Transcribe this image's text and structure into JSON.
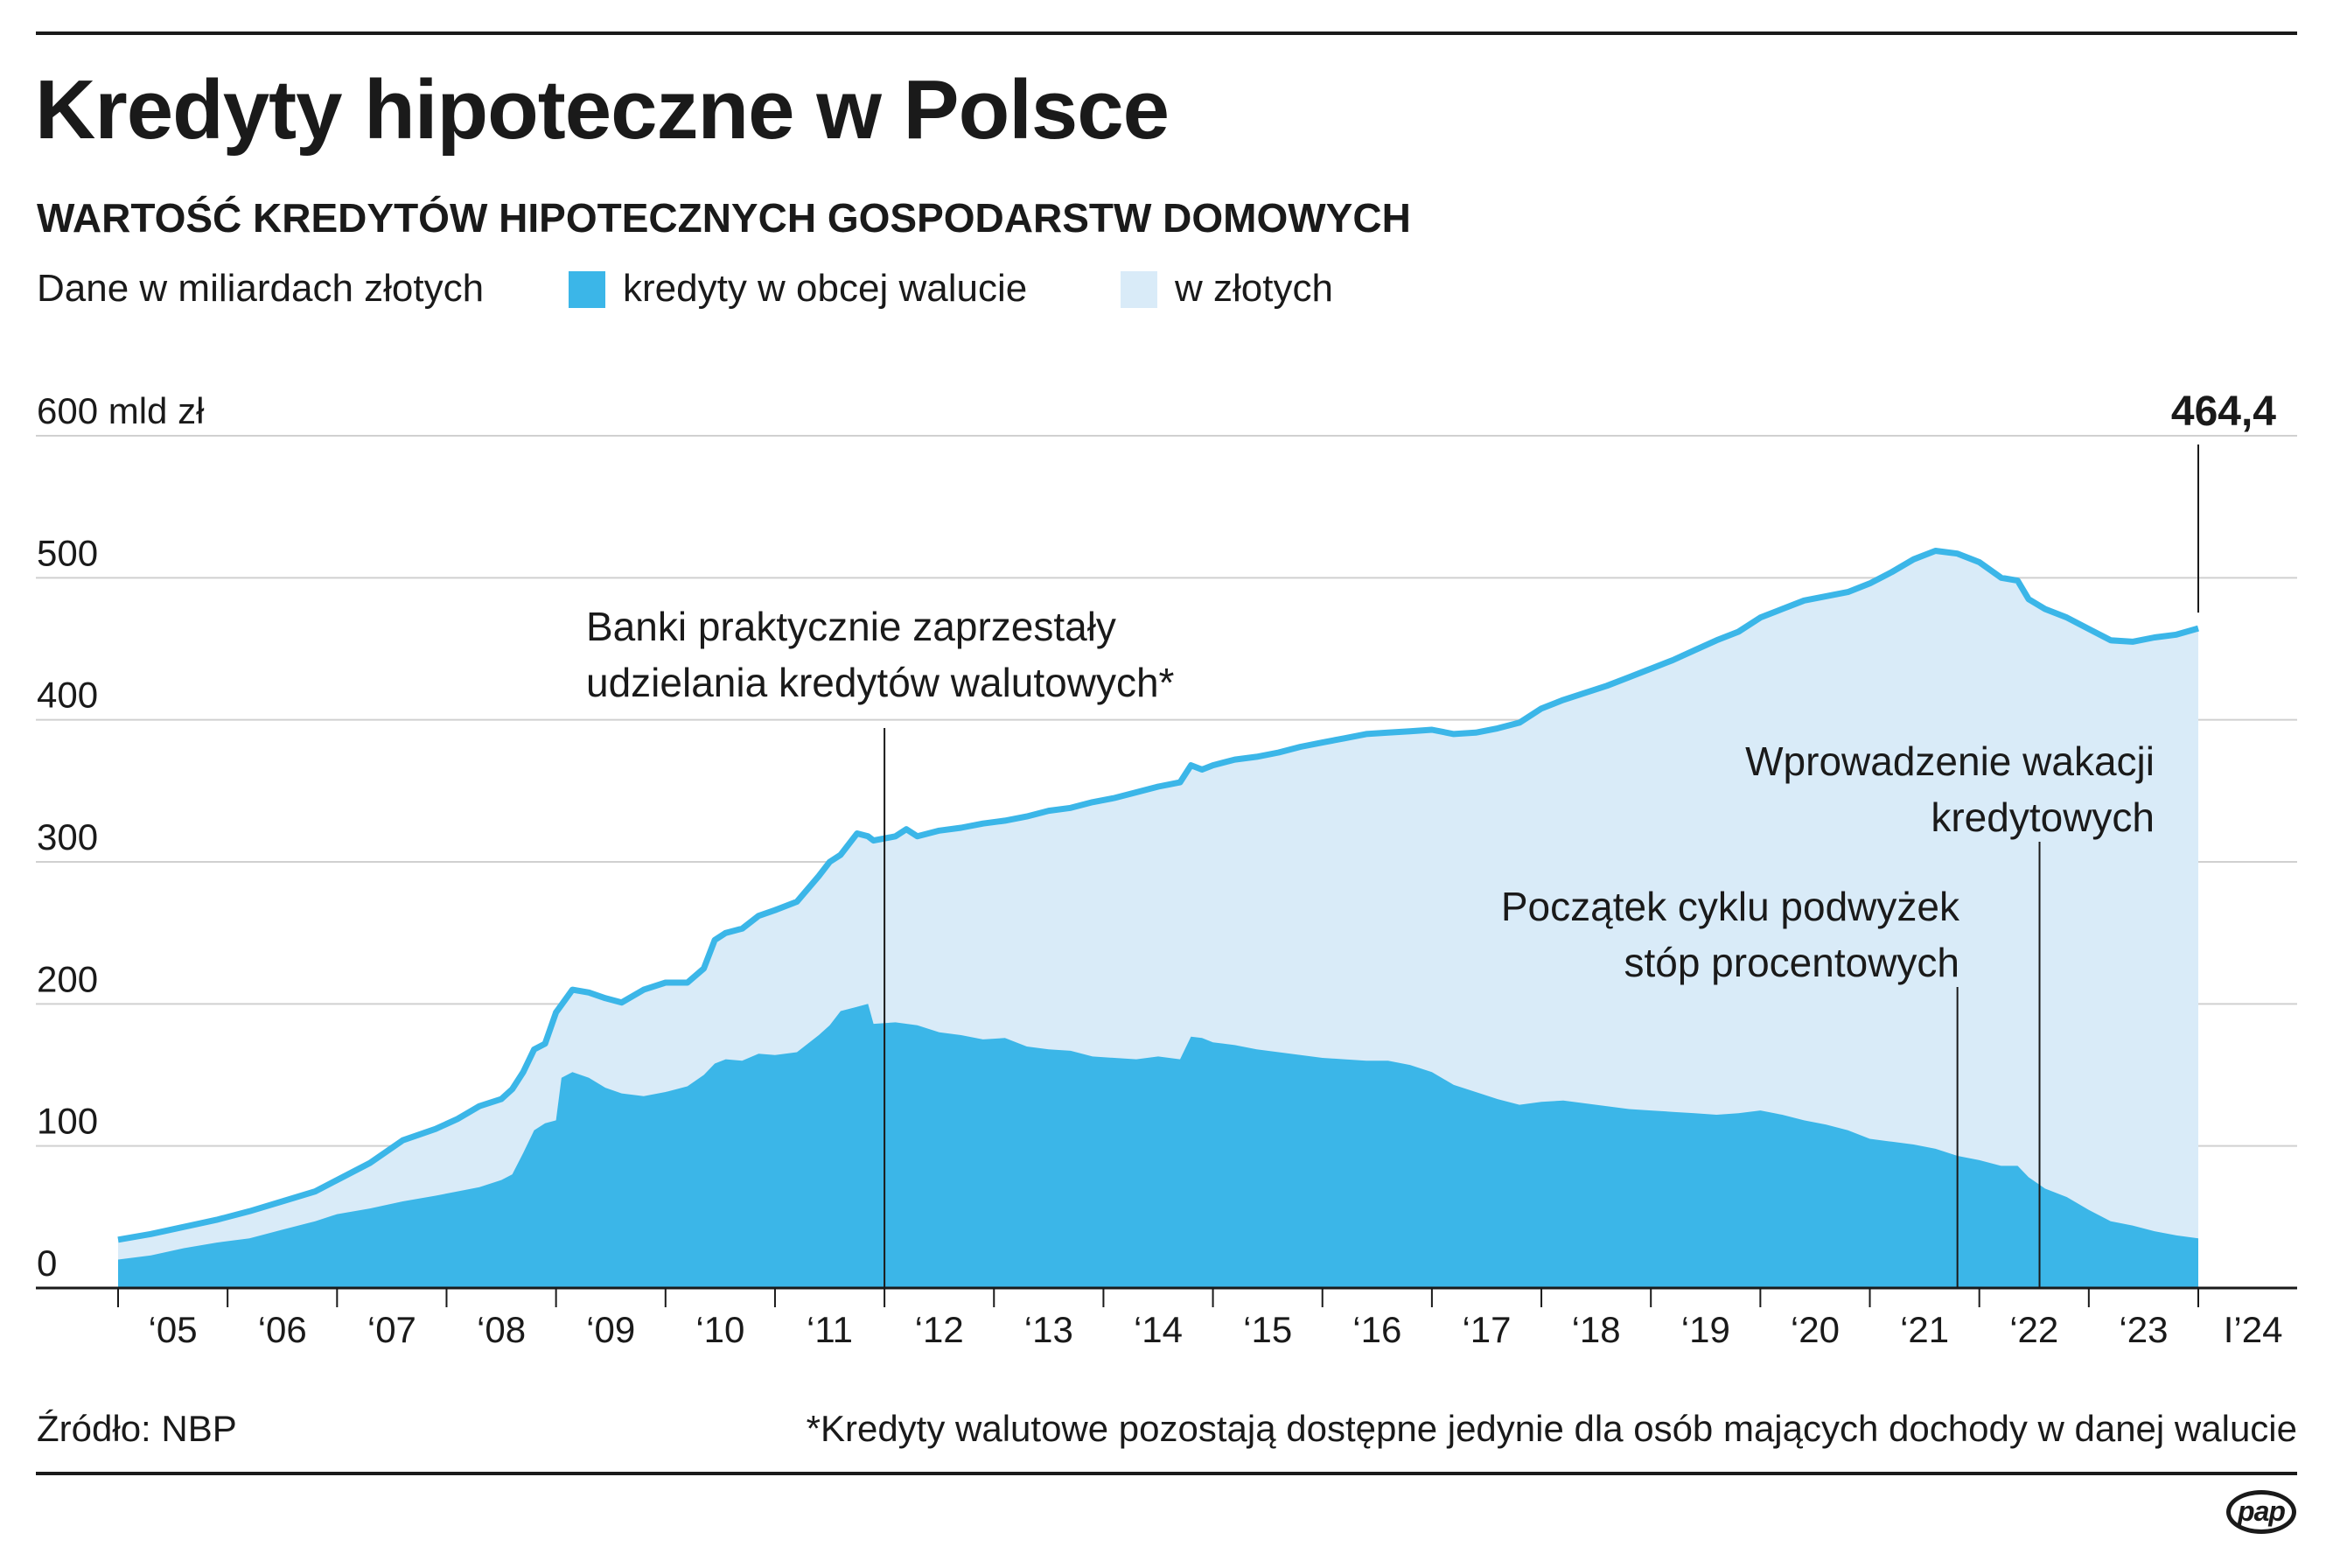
{
  "header": {
    "title": "Kredyty hipoteczne w Polsce",
    "subtitle": "WARTOŚĆ KREDYTÓW HIPOTECZNYCH GOSPODARSTW DOMOWYCH"
  },
  "legend": {
    "unit_note": "Dane w miliardach złotych",
    "foreign_label": "kredyty w obcej walucie",
    "pln_label": "w złotych"
  },
  "colors": {
    "foreign": "#3bb6e8",
    "pln": "#d9ebf8",
    "total_line": "#3bb6e8",
    "text": "#1a1a1a",
    "grid": "#d0d0d0"
  },
  "chart_data": {
    "type": "area",
    "title": "Kredyty hipoteczne w Polsce",
    "subtitle": "WARTOŚĆ KREDYTÓW HIPOTECZNYCH GOSPODARSTW DOMOWYCH",
    "ylabel": "mld zł",
    "ylim": [
      0,
      600
    ],
    "xlim": [
      2005.0,
      2024.1
    ],
    "grid": true,
    "y_ticks": [
      {
        "value": 0,
        "label": "0"
      },
      {
        "value": 100,
        "label": "100"
      },
      {
        "value": 200,
        "label": "200"
      },
      {
        "value": 300,
        "label": "300"
      },
      {
        "value": 400,
        "label": "400"
      },
      {
        "value": 500,
        "label": "500"
      },
      {
        "value": 600,
        "label": "600 mld zł"
      }
    ],
    "x_ticks": [
      {
        "year": 2005,
        "label": "‘05"
      },
      {
        "year": 2006,
        "label": "‘06"
      },
      {
        "year": 2007,
        "label": "‘07"
      },
      {
        "year": 2008,
        "label": "‘08"
      },
      {
        "year": 2009,
        "label": "‘09"
      },
      {
        "year": 2010,
        "label": "‘10"
      },
      {
        "year": 2011,
        "label": "‘11"
      },
      {
        "year": 2012,
        "label": "‘12"
      },
      {
        "year": 2013,
        "label": "‘13"
      },
      {
        "year": 2014,
        "label": "‘14"
      },
      {
        "year": 2015,
        "label": "‘15"
      },
      {
        "year": 2016,
        "label": "‘16"
      },
      {
        "year": 2017,
        "label": "‘17"
      },
      {
        "year": 2018,
        "label": "‘18"
      },
      {
        "year": 2019,
        "label": "‘19"
      },
      {
        "year": 2020,
        "label": "‘20"
      },
      {
        "year": 2021,
        "label": "‘21"
      },
      {
        "year": 2022,
        "label": "‘22"
      },
      {
        "year": 2023,
        "label": "‘23"
      },
      {
        "year": 2024,
        "label": "I’24"
      }
    ],
    "series": [
      {
        "name": "kredyty w obcej walucie",
        "points": [
          [
            2005.0,
            20
          ],
          [
            2005.3,
            23
          ],
          [
            2005.6,
            28
          ],
          [
            2005.9,
            32
          ],
          [
            2006.2,
            35
          ],
          [
            2006.5,
            41
          ],
          [
            2006.8,
            47
          ],
          [
            2007.0,
            52
          ],
          [
            2007.3,
            56
          ],
          [
            2007.6,
            61
          ],
          [
            2007.9,
            65
          ],
          [
            2008.1,
            68
          ],
          [
            2008.3,
            71
          ],
          [
            2008.5,
            76
          ],
          [
            2008.6,
            80
          ],
          [
            2008.7,
            95
          ],
          [
            2008.8,
            111
          ],
          [
            2008.9,
            116
          ],
          [
            2009.0,
            118
          ],
          [
            2009.05,
            148
          ],
          [
            2009.15,
            152
          ],
          [
            2009.3,
            148
          ],
          [
            2009.45,
            141
          ],
          [
            2009.6,
            137
          ],
          [
            2009.8,
            135
          ],
          [
            2010.0,
            138
          ],
          [
            2010.2,
            142
          ],
          [
            2010.35,
            150
          ],
          [
            2010.45,
            158
          ],
          [
            2010.55,
            161
          ],
          [
            2010.7,
            160
          ],
          [
            2010.85,
            165
          ],
          [
            2011.0,
            164
          ],
          [
            2011.2,
            166
          ],
          [
            2011.4,
            178
          ],
          [
            2011.5,
            185
          ],
          [
            2011.6,
            195
          ],
          [
            2011.75,
            198
          ],
          [
            2011.85,
            200
          ],
          [
            2011.9,
            186
          ],
          [
            2012.1,
            187
          ],
          [
            2012.3,
            185
          ],
          [
            2012.5,
            180
          ],
          [
            2012.7,
            178
          ],
          [
            2012.9,
            175
          ],
          [
            2013.1,
            176
          ],
          [
            2013.3,
            170
          ],
          [
            2013.5,
            168
          ],
          [
            2013.7,
            167
          ],
          [
            2013.9,
            163
          ],
          [
            2014.1,
            162
          ],
          [
            2014.3,
            161
          ],
          [
            2014.5,
            163
          ],
          [
            2014.7,
            161
          ],
          [
            2014.8,
            177
          ],
          [
            2014.9,
            176
          ],
          [
            2015.0,
            173
          ],
          [
            2015.2,
            171
          ],
          [
            2015.4,
            168
          ],
          [
            2015.6,
            166
          ],
          [
            2015.8,
            164
          ],
          [
            2016.0,
            162
          ],
          [
            2016.2,
            161
          ],
          [
            2016.4,
            160
          ],
          [
            2016.6,
            160
          ],
          [
            2016.8,
            157
          ],
          [
            2017.0,
            152
          ],
          [
            2017.2,
            143
          ],
          [
            2017.4,
            138
          ],
          [
            2017.6,
            133
          ],
          [
            2017.8,
            129
          ],
          [
            2018.0,
            131
          ],
          [
            2018.2,
            132
          ],
          [
            2018.4,
            130
          ],
          [
            2018.6,
            128
          ],
          [
            2018.8,
            126
          ],
          [
            2019.0,
            125
          ],
          [
            2019.2,
            124
          ],
          [
            2019.4,
            123
          ],
          [
            2019.6,
            122
          ],
          [
            2019.8,
            123
          ],
          [
            2020.0,
            125
          ],
          [
            2020.2,
            122
          ],
          [
            2020.4,
            118
          ],
          [
            2020.6,
            115
          ],
          [
            2020.8,
            111
          ],
          [
            2021.0,
            105
          ],
          [
            2021.2,
            103
          ],
          [
            2021.4,
            101
          ],
          [
            2021.6,
            98
          ],
          [
            2021.8,
            93
          ],
          [
            2022.0,
            90
          ],
          [
            2022.2,
            86
          ],
          [
            2022.35,
            86
          ],
          [
            2022.45,
            78
          ],
          [
            2022.6,
            70
          ],
          [
            2022.8,
            64
          ],
          [
            2023.0,
            55
          ],
          [
            2023.2,
            47
          ],
          [
            2023.4,
            44
          ],
          [
            2023.6,
            40
          ],
          [
            2023.8,
            37
          ],
          [
            2024.0,
            35
          ]
        ]
      },
      {
        "name": "w złotych",
        "points": [
          [
            2005.0,
            34
          ],
          [
            2005.3,
            38
          ],
          [
            2005.6,
            43
          ],
          [
            2005.9,
            48
          ],
          [
            2006.2,
            54
          ],
          [
            2006.5,
            61
          ],
          [
            2006.8,
            68
          ],
          [
            2007.0,
            76
          ],
          [
            2007.3,
            88
          ],
          [
            2007.6,
            104
          ],
          [
            2007.9,
            112
          ],
          [
            2008.1,
            119
          ],
          [
            2008.3,
            128
          ],
          [
            2008.5,
            133
          ],
          [
            2008.6,
            140
          ],
          [
            2008.7,
            152
          ],
          [
            2008.8,
            168
          ],
          [
            2008.9,
            172
          ],
          [
            2009.0,
            194
          ],
          [
            2009.15,
            210
          ],
          [
            2009.3,
            208
          ],
          [
            2009.45,
            204
          ],
          [
            2009.6,
            201
          ],
          [
            2009.8,
            210
          ],
          [
            2010.0,
            215
          ],
          [
            2010.2,
            215
          ],
          [
            2010.35,
            225
          ],
          [
            2010.45,
            245
          ],
          [
            2010.55,
            250
          ],
          [
            2010.7,
            253
          ],
          [
            2010.85,
            262
          ],
          [
            2011.0,
            266
          ],
          [
            2011.2,
            272
          ],
          [
            2011.4,
            290
          ],
          [
            2011.5,
            300
          ],
          [
            2011.6,
            305
          ],
          [
            2011.75,
            320
          ],
          [
            2011.85,
            318
          ],
          [
            2011.9,
            315
          ],
          [
            2012.1,
            318
          ],
          [
            2012.2,
            323
          ],
          [
            2012.3,
            318
          ],
          [
            2012.5,
            322
          ],
          [
            2012.7,
            324
          ],
          [
            2012.9,
            327
          ],
          [
            2013.1,
            329
          ],
          [
            2013.3,
            332
          ],
          [
            2013.5,
            336
          ],
          [
            2013.7,
            338
          ],
          [
            2013.9,
            342
          ],
          [
            2014.1,
            345
          ],
          [
            2014.3,
            349
          ],
          [
            2014.5,
            353
          ],
          [
            2014.7,
            356
          ],
          [
            2014.8,
            368
          ],
          [
            2014.9,
            365
          ],
          [
            2015.0,
            368
          ],
          [
            2015.2,
            372
          ],
          [
            2015.4,
            374
          ],
          [
            2015.6,
            377
          ],
          [
            2015.8,
            381
          ],
          [
            2016.0,
            384
          ],
          [
            2016.2,
            387
          ],
          [
            2016.4,
            390
          ],
          [
            2016.6,
            391
          ],
          [
            2016.8,
            392
          ],
          [
            2017.0,
            393
          ],
          [
            2017.2,
            390
          ],
          [
            2017.4,
            391
          ],
          [
            2017.6,
            394
          ],
          [
            2017.8,
            398
          ],
          [
            2018.0,
            408
          ],
          [
            2018.2,
            414
          ],
          [
            2018.4,
            419
          ],
          [
            2018.6,
            424
          ],
          [
            2018.8,
            430
          ],
          [
            2019.0,
            436
          ],
          [
            2019.2,
            442
          ],
          [
            2019.4,
            449
          ],
          [
            2019.6,
            456
          ],
          [
            2019.8,
            462
          ],
          [
            2020.0,
            472
          ],
          [
            2020.2,
            478
          ],
          [
            2020.4,
            484
          ],
          [
            2020.6,
            487
          ],
          [
            2020.8,
            490
          ],
          [
            2021.0,
            496
          ],
          [
            2021.2,
            504
          ],
          [
            2021.4,
            513
          ],
          [
            2021.6,
            519
          ],
          [
            2021.8,
            517
          ],
          [
            2022.0,
            511
          ],
          [
            2022.2,
            500
          ],
          [
            2022.35,
            498
          ],
          [
            2022.45,
            485
          ],
          [
            2022.6,
            478
          ],
          [
            2022.8,
            472
          ],
          [
            2023.0,
            464
          ],
          [
            2023.2,
            456
          ],
          [
            2023.4,
            455
          ],
          [
            2023.6,
            458
          ],
          [
            2023.8,
            460
          ],
          [
            2024.0,
            464.4
          ]
        ]
      }
    ],
    "last_value": {
      "label": "464,4",
      "value": 464.4,
      "x": 2024.0
    },
    "annotations": [
      {
        "id": "annotation-2012",
        "x": 2012.0,
        "lines": [
          "Banki praktycznie zaprzestały",
          "udzielania kredytów walutowych*"
        ],
        "align": "start"
      },
      {
        "id": "annotation-2021",
        "x": 2021.8,
        "lines": [
          "Początek cyklu podwyżek",
          "stóp procentowych"
        ],
        "align": "end"
      },
      {
        "id": "annotation-2022",
        "x": 2022.55,
        "lines": [
          "Wprowadzenie wakacji",
          "kredytowych"
        ],
        "align": "end"
      }
    ]
  },
  "footer": {
    "source": "Źródło: NBP",
    "note": "*Kredyty walutowe pozostają dostępne jedynie dla osób mających dochody w danej walucie",
    "logo": "pap"
  }
}
